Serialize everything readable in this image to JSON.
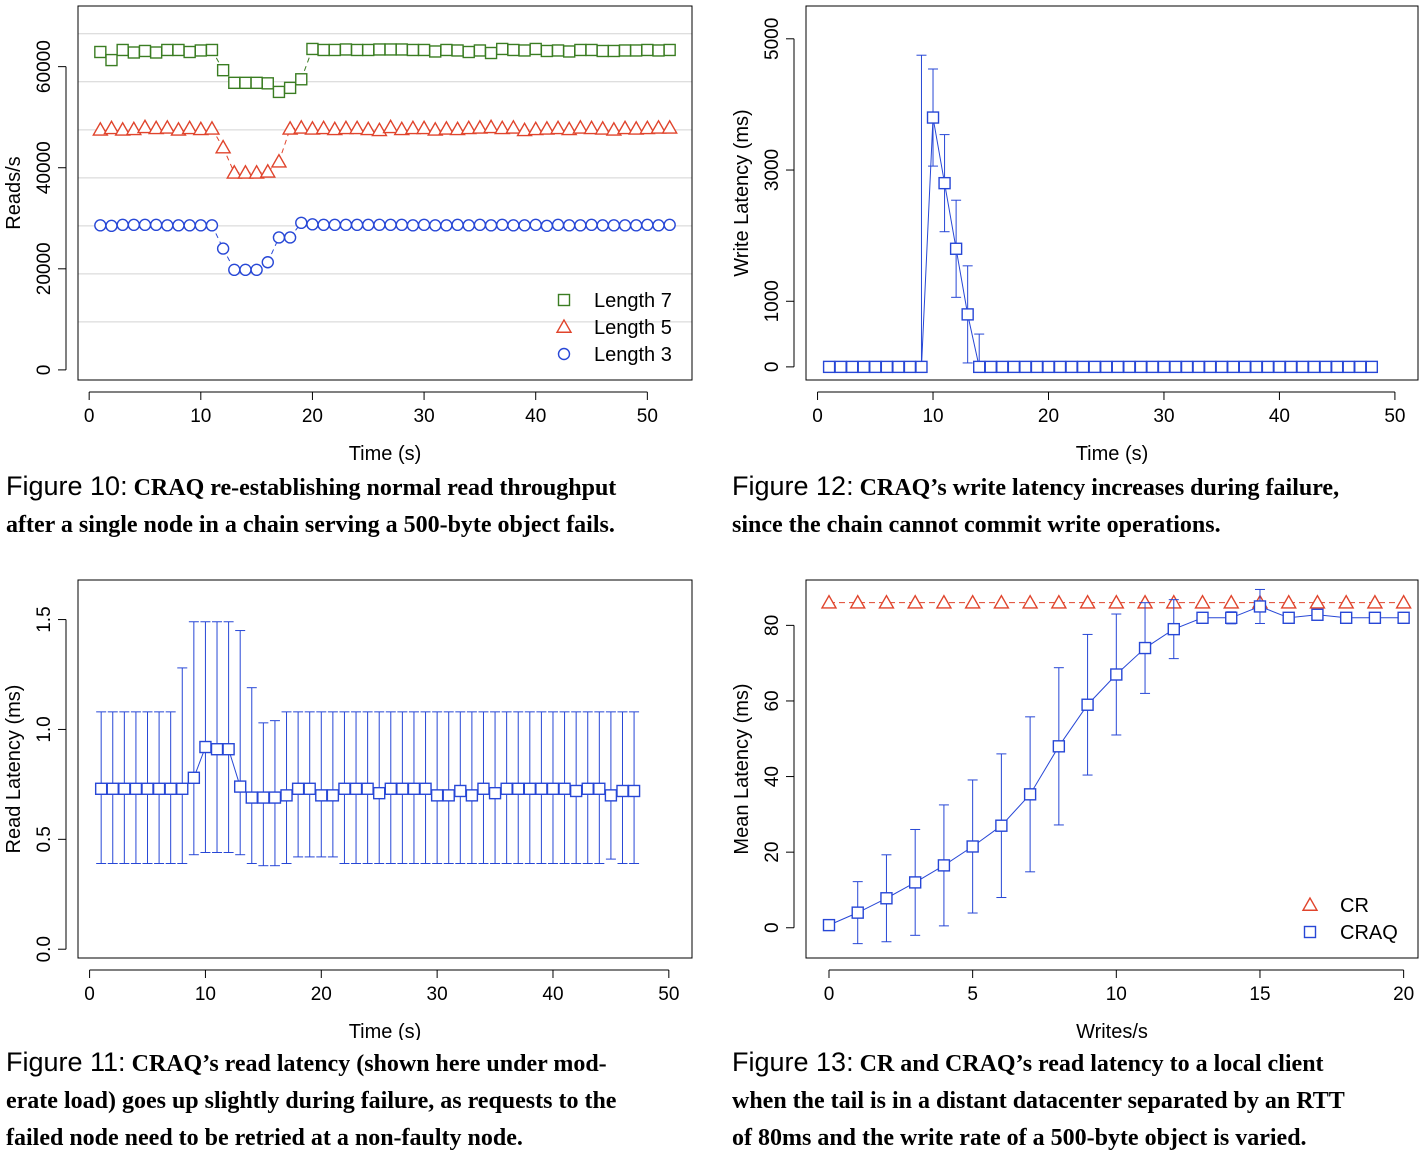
{
  "figures": [
    {
      "id": "fig10",
      "caption": {
        "label": "Figure 10:",
        "lines": [
          "CRAQ re-establishing normal read throughput",
          "after a single node in a chain serving a 500-byte object fails."
        ]
      },
      "chart_data": {
        "type": "scatter",
        "xlabel": "Time (s)",
        "ylabel": "Reads/s",
        "xlim": [
          -1,
          54
        ],
        "ylim": [
          -2000,
          72000
        ],
        "xticks": [
          0,
          10,
          20,
          30,
          40,
          50
        ],
        "yticks": [
          0,
          20000,
          40000,
          60000
        ],
        "ytick_labels": [
          "0",
          "20000",
          "40000",
          "60000"
        ],
        "grid": true,
        "grid_y": [
          9500,
          19000,
          28500,
          38000,
          47500,
          57000,
          66500
        ],
        "legend_position": "bottom-right",
        "series": [
          {
            "name": "Length 7",
            "marker": "square",
            "color": "#3a7d22",
            "x": [
              1,
              2,
              3,
              4,
              5,
              6,
              7,
              8,
              9,
              10,
              11,
              12,
              13,
              14,
              15,
              16,
              17,
              18,
              19,
              20,
              21,
              22,
              23,
              24,
              25,
              26,
              27,
              28,
              29,
              30,
              31,
              32,
              33,
              34,
              35,
              36,
              37,
              38,
              39,
              40,
              41,
              42,
              43,
              44,
              45,
              46,
              47,
              48,
              49,
              50,
              51,
              52
            ],
            "y": [
              62900,
              61300,
              63300,
              62800,
              63100,
              62800,
              63300,
              63300,
              62900,
              63200,
              63300,
              59300,
              56800,
              56800,
              56800,
              56700,
              55000,
              55800,
              57500,
              63500,
              63300,
              63300,
              63400,
              63300,
              63300,
              63400,
              63400,
              63400,
              63300,
              63300,
              63000,
              63300,
              63200,
              62900,
              63200,
              62700,
              63500,
              63300,
              63200,
              63500,
              63100,
              63200,
              63000,
              63300,
              63300,
              63100,
              63100,
              63200,
              63200,
              63300,
              63200,
              63300
            ]
          },
          {
            "name": "Length 5",
            "marker": "triangle",
            "color": "#e0442c",
            "x": [
              1,
              2,
              3,
              4,
              5,
              6,
              7,
              8,
              9,
              10,
              11,
              12,
              13,
              14,
              15,
              16,
              17,
              18,
              19,
              20,
              21,
              22,
              23,
              24,
              25,
              26,
              27,
              28,
              29,
              30,
              31,
              32,
              33,
              34,
              35,
              36,
              37,
              38,
              39,
              40,
              41,
              42,
              43,
              44,
              45,
              46,
              47,
              48,
              49,
              50,
              51,
              52
            ],
            "y": [
              47500,
              47800,
              47500,
              47600,
              48000,
              47800,
              47900,
              47500,
              47800,
              47600,
              47700,
              44000,
              39000,
              39000,
              39000,
              39200,
              41200,
              47700,
              47900,
              47700,
              47800,
              47600,
              47800,
              47800,
              47600,
              47400,
              48000,
              47600,
              47800,
              47800,
              47500,
              47700,
              47600,
              47800,
              47900,
              48000,
              47800,
              47900,
              47400,
              47600,
              47700,
              47800,
              47600,
              47900,
              47800,
              47700,
              47500,
              47800,
              47700,
              47800,
              47900,
              47900
            ]
          },
          {
            "name": "Length 3",
            "marker": "circle",
            "color": "#2747d6",
            "x": [
              1,
              2,
              3,
              4,
              5,
              6,
              7,
              8,
              9,
              10,
              11,
              12,
              13,
              14,
              15,
              16,
              17,
              18,
              19,
              20,
              21,
              22,
              23,
              24,
              25,
              26,
              27,
              28,
              29,
              30,
              31,
              32,
              33,
              34,
              35,
              36,
              37,
              38,
              39,
              40,
              41,
              42,
              43,
              44,
              45,
              46,
              47,
              48,
              49,
              50,
              51,
              52
            ],
            "y": [
              28600,
              28500,
              28700,
              28700,
              28700,
              28700,
              28600,
              28600,
              28600,
              28600,
              28600,
              24000,
              19800,
              19800,
              19800,
              21300,
              26200,
              26200,
              29100,
              28800,
              28700,
              28700,
              28700,
              28700,
              28700,
              28700,
              28700,
              28700,
              28600,
              28700,
              28600,
              28600,
              28700,
              28600,
              28700,
              28600,
              28700,
              28600,
              28600,
              28700,
              28500,
              28700,
              28600,
              28600,
              28700,
              28600,
              28600,
              28600,
              28600,
              28700,
              28600,
              28700
            ]
          }
        ]
      }
    },
    {
      "id": "fig12",
      "caption": {
        "label": "Figure 12:",
        "lines": [
          "CRAQ’s write latency increases during failure,",
          "since the chain cannot commit write operations."
        ]
      },
      "chart_data": {
        "type": "scatter",
        "xlabel": "Time (s)",
        "ylabel": "Write Latency (ms)",
        "xlim": [
          -1,
          52
        ],
        "ylim": [
          -200,
          5500
        ],
        "xticks": [
          0,
          10,
          20,
          30,
          40,
          50
        ],
        "yticks": [
          0,
          1000,
          3000,
          5000
        ],
        "ytick_labels": [
          "0",
          "1000",
          "3000",
          "5000"
        ],
        "legend_position": "none",
        "series": [
          {
            "marker": "square",
            "color": "#2747d6",
            "x": [
              1,
              2,
              3,
              4,
              5,
              6,
              7,
              8,
              9,
              10,
              11,
              12,
              13,
              14,
              15,
              16,
              17,
              18,
              19,
              20,
              21,
              22,
              23,
              24,
              25,
              26,
              27,
              28,
              29,
              30,
              31,
              32,
              33,
              34,
              35,
              36,
              37,
              38,
              39,
              40,
              41,
              42,
              43,
              44,
              45,
              46,
              47,
              48
            ],
            "y": [
              0,
              0,
              0,
              0,
              0,
              0,
              0,
              0,
              0,
              3800,
              2800,
              1800,
              800,
              0,
              0,
              0,
              0,
              0,
              0,
              0,
              0,
              0,
              0,
              0,
              0,
              0,
              0,
              0,
              0,
              0,
              0,
              0,
              0,
              0,
              0,
              0,
              0,
              0,
              0,
              0,
              0,
              0,
              0,
              0,
              0,
              0,
              0,
              0
            ],
            "yerr": [
              0,
              0,
              0,
              0,
              0,
              0,
              0,
              0,
              4750,
              740,
              740,
              740,
              740,
              500,
              0,
              0,
              0,
              0,
              0,
              0,
              0,
              0,
              0,
              0,
              0,
              0,
              0,
              0,
              0,
              0,
              0,
              0,
              0,
              0,
              0,
              0,
              0,
              0,
              0,
              0,
              0,
              0,
              0,
              0,
              0,
              0,
              0,
              0
            ]
          }
        ]
      }
    },
    {
      "id": "fig11",
      "caption": {
        "label": "Figure 11:",
        "lines": [
          "CRAQ’s read latency (shown here under mod-",
          "erate load) goes up slightly during failure, as requests to the",
          "failed node need to be retried at a non-faulty node."
        ]
      },
      "chart_data": {
        "type": "scatter",
        "xlabel": "Time (s)",
        "ylabel": "Read Latency (ms)",
        "xlim": [
          -1,
          52
        ],
        "ylim": [
          -0.04,
          1.68
        ],
        "xticks": [
          0,
          10,
          20,
          30,
          40,
          50
        ],
        "yticks": [
          0.0,
          0.5,
          1.0,
          1.5
        ],
        "ytick_labels": [
          "0.0",
          "0.5",
          "1.0",
          "1.5"
        ],
        "legend_position": "none",
        "series": [
          {
            "marker": "square",
            "color": "#2747d6",
            "x": [
              1,
              2,
              3,
              4,
              5,
              6,
              7,
              8,
              9,
              10,
              11,
              12,
              13,
              14,
              15,
              16,
              17,
              18,
              19,
              20,
              21,
              22,
              23,
              24,
              25,
              26,
              27,
              28,
              29,
              30,
              31,
              32,
              33,
              34,
              35,
              36,
              37,
              38,
              39,
              40,
              41,
              42,
              43,
              44,
              45,
              46,
              47
            ],
            "y": [
              0.73,
              0.73,
              0.73,
              0.73,
              0.73,
              0.73,
              0.73,
              0.73,
              0.78,
              0.92,
              0.91,
              0.91,
              0.74,
              0.69,
              0.69,
              0.69,
              0.7,
              0.73,
              0.73,
              0.7,
              0.7,
              0.73,
              0.73,
              0.73,
              0.71,
              0.73,
              0.73,
              0.73,
              0.73,
              0.7,
              0.7,
              0.72,
              0.7,
              0.73,
              0.71,
              0.73,
              0.73,
              0.73,
              0.73,
              0.73,
              0.73,
              0.72,
              0.73,
              0.73,
              0.7,
              0.72,
              0.72
            ],
            "ylow": [
              0.39,
              0.39,
              0.39,
              0.39,
              0.39,
              0.39,
              0.39,
              0.39,
              0.43,
              0.44,
              0.44,
              0.44,
              0.43,
              0.39,
              0.38,
              0.38,
              0.39,
              0.42,
              0.42,
              0.42,
              0.42,
              0.39,
              0.39,
              0.39,
              0.39,
              0.39,
              0.39,
              0.39,
              0.39,
              0.39,
              0.39,
              0.39,
              0.39,
              0.39,
              0.39,
              0.39,
              0.39,
              0.39,
              0.39,
              0.39,
              0.39,
              0.39,
              0.39,
              0.39,
              0.41,
              0.39,
              0.39
            ],
            "yhigh": [
              1.08,
              1.08,
              1.08,
              1.08,
              1.08,
              1.08,
              1.08,
              1.28,
              1.49,
              1.49,
              1.49,
              1.49,
              1.45,
              1.19,
              1.03,
              1.04,
              1.08,
              1.08,
              1.08,
              1.08,
              1.08,
              1.08,
              1.08,
              1.08,
              1.08,
              1.08,
              1.08,
              1.08,
              1.08,
              1.08,
              1.08,
              1.08,
              1.08,
              1.08,
              1.08,
              1.08,
              1.08,
              1.08,
              1.08,
              1.08,
              1.08,
              1.08,
              1.08,
              1.08,
              1.08,
              1.08,
              1.08
            ]
          }
        ]
      }
    },
    {
      "id": "fig13",
      "caption": {
        "label": "Figure 13:",
        "lines": [
          "CR and CRAQ’s read latency to a local client",
          "when the tail is in a distant datacenter separated by an RTT",
          "of 80ms and the write rate of a 500-byte object is varied."
        ]
      },
      "chart_data": {
        "type": "line",
        "xlabel": "Writes/s",
        "ylabel": "Mean Latency (ms)",
        "xlim": [
          -0.8,
          20.5
        ],
        "ylim": [
          -8,
          92
        ],
        "xticks": [
          0,
          5,
          10,
          15,
          20
        ],
        "yticks": [
          0,
          20,
          40,
          60,
          80
        ],
        "ytick_labels": [
          "0",
          "20",
          "40",
          "60",
          "80"
        ],
        "legend_position": "bottom-right",
        "series": [
          {
            "name": "CR",
            "marker": "triangle",
            "color": "#e0442c",
            "dashed": true,
            "x": [
              0,
              1,
              2,
              3,
              4,
              5,
              6,
              7,
              8,
              9,
              10,
              11,
              12,
              13,
              14,
              15,
              16,
              17,
              18,
              19,
              20
            ],
            "y": [
              86,
              86,
              86,
              86,
              86,
              86,
              86,
              86,
              86,
              86,
              86,
              86,
              86,
              86,
              86,
              86,
              86,
              86,
              86,
              86,
              86
            ],
            "yerr": [
              0,
              0,
              0,
              0,
              0,
              0,
              0,
              0,
              0,
              0,
              0,
              0,
              0,
              0,
              0,
              0,
              0,
              0,
              0,
              0,
              0
            ]
          },
          {
            "name": "CRAQ",
            "marker": "square",
            "color": "#2747d6",
            "dashed": false,
            "x": [
              0,
              1,
              2,
              3,
              4,
              5,
              6,
              7,
              8,
              9,
              10,
              11,
              12,
              13,
              14,
              15,
              16,
              17,
              18,
              19,
              20
            ],
            "y": [
              0.7,
              4,
              7.8,
              12,
              16.5,
              21.5,
              27,
              35.3,
              48,
              59,
              67,
              74,
              79,
              82,
              82,
              85,
              82,
              82.8,
              82,
              82,
              82
            ],
            "yerr": [
              0,
              8.2,
              11.5,
              14,
              16,
              17.6,
              19,
              20.5,
              20.8,
              18.6,
              16,
              12,
              7.8,
              0,
              1.6,
              4.5,
              0,
              0,
              0,
              0,
              0
            ]
          }
        ]
      }
    }
  ]
}
